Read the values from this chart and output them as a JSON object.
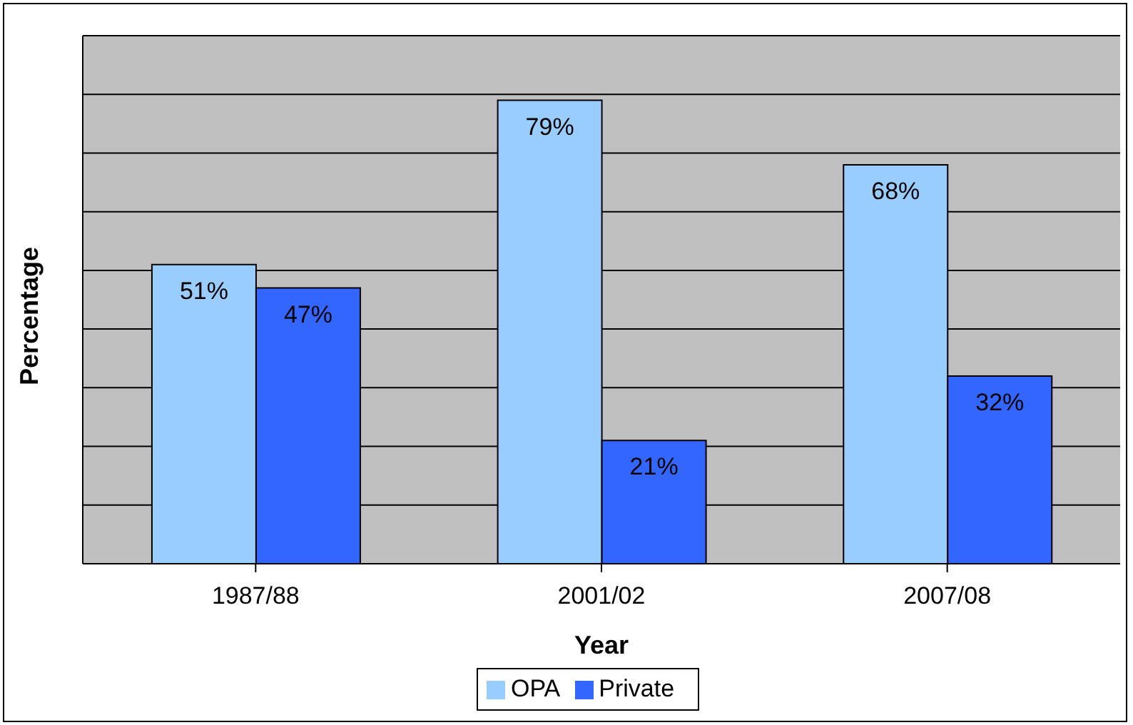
{
  "chart_data": {
    "type": "bar",
    "xlabel": "Year",
    "ylabel": "Percentage",
    "categories": [
      "1987/88",
      "2001/02",
      "2007/08"
    ],
    "series": [
      {
        "name": "OPA",
        "color": "#99ccff",
        "values": [
          51,
          79,
          68
        ],
        "value_labels": [
          "51%",
          "79%",
          "68%"
        ]
      },
      {
        "name": "Private",
        "color": "#3366ff",
        "values": [
          47,
          21,
          32
        ],
        "value_labels": [
          "47%",
          "21%",
          "32%"
        ]
      }
    ],
    "ylim": [
      0,
      90
    ],
    "yticks": [
      {
        "value": 0,
        "label": null
      },
      {
        "value": 10,
        "label": null
      },
      {
        "value": 20,
        "label": null
      },
      {
        "value": 30,
        "label": null
      },
      {
        "value": 40,
        "label": null
      },
      {
        "value": 50,
        "label": null
      },
      {
        "value": 60,
        "label": null
      },
      {
        "value": 70,
        "label": null
      },
      {
        "value": 80,
        "label": null
      },
      {
        "value": 90,
        "label": null
      }
    ],
    "grid": "y",
    "legend": "bottom",
    "tick_labels": "x"
  }
}
